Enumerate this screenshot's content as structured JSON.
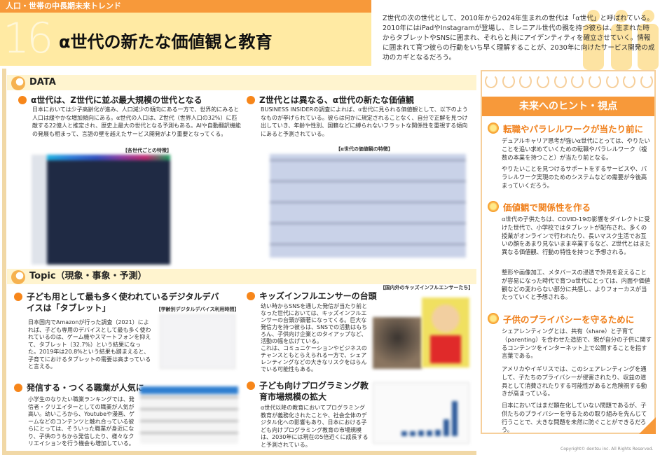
{
  "header": {
    "category": "人口・世帯の中長期未来トレンド",
    "number": "16",
    "title": "α世代の新たな価値観と教育",
    "intro": "Z世代の次の世代として、2010年から2024年生まれの世代は「α世代」と呼ばれている。2010年にはiPadやInstagramが登場し、ミレニアル世代の親を持つ彼らは、生まれた時からタブレットやSNSに囲まれ、それらと共にアイデンティティを確立させていく。情報に囲まれて育つ彼らの行動をいち早く理解することが、2030年に向けたサービス開発の成功のカギとなるだろう。"
  },
  "data_section": {
    "label": "DATA",
    "item1": {
      "heading": "α世代は、Z世代に並ぶ最大規模の世代となる",
      "body": "日本においては少子高齢化が進み、人口減少の傾向にある一方で、世界的にみると人口は緩やかな増加傾向にある。α世代の人口は、Z世代（世界人口の32%）に匹敵する22億人と推定され、歴史上最大の世代となる予測もある。AIや自動翻訳機能の発展も相まって、言語の壁を越えたサービス開発がより重要となってくる。",
      "figure_caption": "【各世代ごとの特徴】"
    },
    "item2": {
      "heading": "Z世代とは異なる、α世代の新たな価値観",
      "body": "BUSINESS INSIDERの調査によれば、α世代に見られる価値観として、以下のようなものが挙げられている。彼らは何かに規定されることなく、自分で正解を見つけ出していき、年齢や性別、国籍などに縛られないフラットな関係性を重視する傾向にあると予測されている。",
      "figure_caption": "【α世代の価値観の特徴】"
    }
  },
  "topic_section": {
    "label": "Topic（現象・事象・予測）",
    "item1": {
      "heading": "子ども用として最も多く使われているデジタルデバイスは「タブレット」",
      "body": "日本国内でAmazonが行った調査（2021）によれば、子ども専用のデバイスとして最も多く使われているのは、ゲーム機やスマートフォンを抑えて、タブレット（32.7%）という結果になった。2019年は20.8%という結果も踏まえると、子育てにおけるタブレットの需要は高まっていると言える。",
      "figure_caption": "【学齢別デジタルデバイス利用時間】"
    },
    "item2": {
      "heading": "キッズインフルエンサーの台頭",
      "body": "幼い時からSNSを通した発信が当たり前となった世代においては、キッズインフルエンサーの台頭が顕著になってくる。巨大な発信力を持つ彼らは、SNSでの活動はもちろん、子供向け企業とのタイアップなど、活動の幅を広げている。\nこれは、コミュニケーションやビジネスのチャンスともとらえられる一方で、シェアレンティングなどの大きなリスクをはらんでいる可能性もある。",
      "figure_caption": "【国内外のキッズインフルエンサーたち】"
    },
    "item3": {
      "heading": "発信する・つくる職業が人気に",
      "body": "小学生のなりたい職業ランキングでは、発信者・クリエイターとしての職業が人気が高い。幼いころから、Youtubeや漫画、ゲームなどのコンテンツと触れ合っている彼らにとっては、そういった職業が身近になり、子供のうちから発信したり、様々なクリエイションを行う機会も増加している。"
    },
    "item4": {
      "heading": "子ども向けプログラミング教育市場規模の拡大",
      "body": "α世代以降の教育においてプログラミング教育が義務化されたことや、社会全体のデジタル化への影響もあり、日本における子ども向けプログラミング教育の市場規模は、2030年には現在の5倍近くに成長すると予測されている。"
    }
  },
  "hints": {
    "title": "未来へのヒント・視点",
    "items": [
      {
        "heading": "転職やパラレルワークが当たり前に",
        "paras": [
          "デュアルキャリア思考が強いα世代にとっては、やりたいことを追い求めていくための転職やパラレルワーク（複数の本業を持つこと）が当たり前となる。",
          "やりたいことを見つけるサポートをするサービスや、パラレルワーク実現のためのシステムなどの需要が今後高まっていくだろう。"
        ]
      },
      {
        "heading": "価値観で関係性を作る",
        "paras": [
          "α世代の子供たちは、COVID-19の影響をダイレクトに受けた世代で、小学校ではタブレットが配布され、多くの授業がオンラインで行われたり、長いマスク生活でお互いの顔をあまり見ないまま卒業するなど、Z世代とはまた異なる価値観、行動の特性を持つと予想される。",
          "整形や画像加工、メタバースの浸透で外見を変えることが容易になった時代で育つα世代にとっては、内面や価値観などの変わらない部分に共感し、よりフォーカスが当たっていくと予想される。"
        ]
      },
      {
        "heading": "子供のプライバシーを守るために",
        "paras": [
          "シェアレンティングとは、共有（share）と子育て（parenting）を合わせた造語で、親が自分の子供に関するコンテンツをインターネット上で公開することを指す言葉である。",
          "アメリカやイギリスでは、このシェアレンティングを通して、子たちのプライバシーが侵害されたり、収益の道具として消費されたりする可能性があると危険視する動きが高まっている。",
          "日本においてはまだ顕在化していない問題であるが、子供たちのプライバシーを守るための取り組みを先んじて行うことで、大きな問題を未然に防ぐことができるだろう。"
        ]
      }
    ]
  },
  "footer": {
    "copyright": "Copyright© dentsu inc. All Rights Reserved."
  },
  "colors": {
    "accent": "#f7993a",
    "bullet": "#f7861a",
    "band": "#ffeaa3",
    "section_band": "#fff4cf",
    "hint_heading": "#f0801c"
  }
}
